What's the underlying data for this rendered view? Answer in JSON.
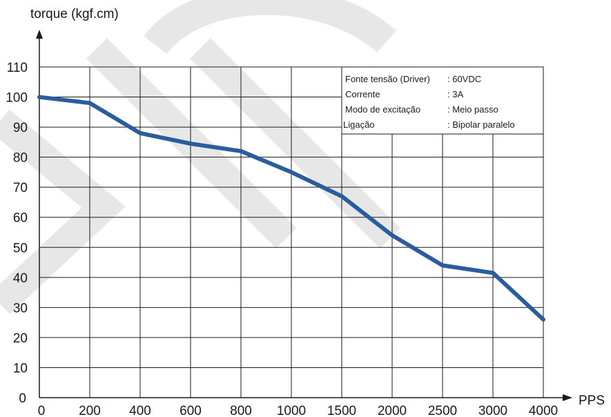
{
  "chart_data": {
    "type": "line",
    "title": "",
    "xlabel": "PPS",
    "ylabel": "torque (kgf.cm)",
    "categories": [
      "0",
      "200",
      "400",
      "600",
      "800",
      "1000",
      "1500",
      "2000",
      "2500",
      "3000",
      "4000"
    ],
    "y_ticks": [
      0,
      10,
      20,
      30,
      40,
      50,
      60,
      70,
      80,
      90,
      100,
      110
    ],
    "ylim": [
      0,
      110
    ],
    "grid": true,
    "series": [
      {
        "values": [
          100,
          98,
          88,
          84.5,
          82,
          75,
          67,
          54,
          44,
          41.5,
          26
        ]
      }
    ],
    "line_color": "#2a5d9e",
    "info_box": {
      "position": "top-right",
      "rows": [
        {
          "label": "Fonte tensão (Driver)",
          "value": ": 60VDC"
        },
        {
          "label": "Corrente",
          "value": ": 3A"
        },
        {
          "label": "Modo de excitação",
          "value": ": Meio passo"
        },
        {
          "label": "Ligação",
          "value": ": Bipolar paralelo"
        }
      ]
    }
  }
}
